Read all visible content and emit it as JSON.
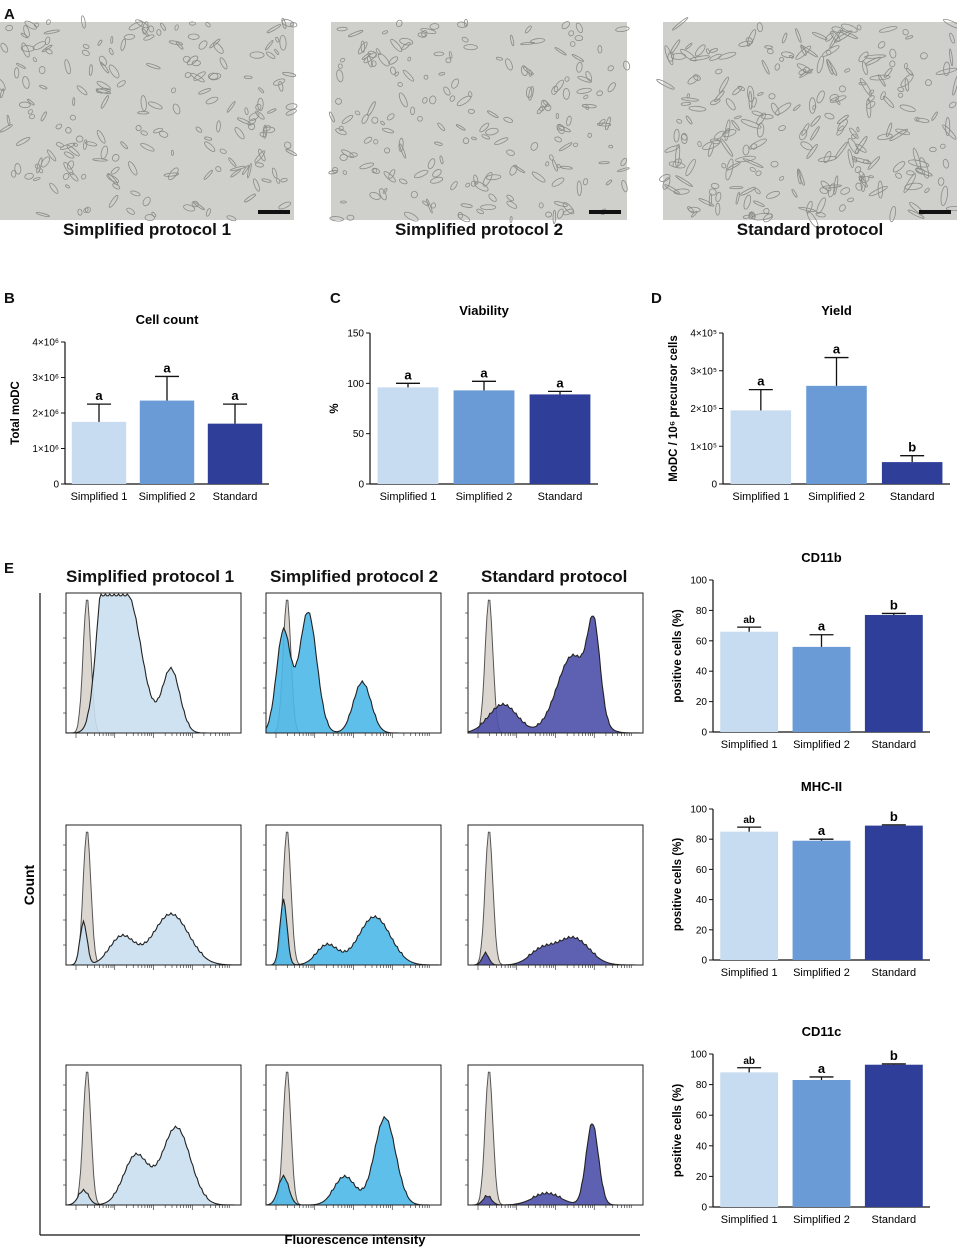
{
  "panel_labels": {
    "a": "A",
    "b": "B",
    "c": "C",
    "d": "D",
    "e": "E"
  },
  "micrographs": [
    {
      "caption": "Simplified protocol 1"
    },
    {
      "caption": "Simplified protocol 2"
    },
    {
      "caption": "Standard protocol"
    }
  ],
  "colors": {
    "light": "#c7dcf0",
    "mid": "#6a9bd6",
    "dark": "#2e3e99",
    "flow_light": "#c9dff0",
    "flow_mid": "#4bb8e8",
    "flow_dark": "#4d4fa8",
    "isotype": "#dcd6d0"
  },
  "flow": {
    "column_titles": [
      "Simplified protocol 1",
      "Simplified protocol 2",
      "Standard protocol"
    ],
    "y_label": "Count",
    "x_label": "Fluorescence intensity"
  },
  "chart_data": [
    {
      "id": "B",
      "type": "bar",
      "title": "Cell count",
      "ylabel": "Total moDC",
      "categories": [
        "Simplified 1",
        "Simplified 2",
        "Standard"
      ],
      "values": [
        1.75,
        2.35,
        1.7
      ],
      "errors": [
        0.5,
        0.68,
        0.55
      ],
      "letters": [
        "a",
        "a",
        "a"
      ],
      "ylim": [
        0,
        4
      ],
      "yticks": [
        {
          "v": 0,
          "label": "0"
        },
        {
          "v": 1,
          "label": "1×10⁶"
        },
        {
          "v": 2,
          "label": "2×10⁶"
        },
        {
          "v": 3,
          "label": "3×10⁶"
        },
        {
          "v": 4,
          "label": "4×10⁶"
        }
      ]
    },
    {
      "id": "C",
      "type": "bar",
      "title": "Viability",
      "ylabel": "%",
      "categories": [
        "Simplified 1",
        "Simplified 2",
        "Standard"
      ],
      "values": [
        96,
        93,
        89
      ],
      "errors": [
        4,
        9,
        3
      ],
      "letters": [
        "a",
        "a",
        "a"
      ],
      "ylim": [
        0,
        150
      ],
      "yticks": [
        {
          "v": 0,
          "label": "0"
        },
        {
          "v": 50,
          "label": "50"
        },
        {
          "v": 100,
          "label": "100"
        },
        {
          "v": 150,
          "label": "150"
        }
      ]
    },
    {
      "id": "D",
      "type": "bar",
      "title": "Yield",
      "ylabel": "MoDC / 10⁶ precursor cells",
      "categories": [
        "Simplified 1",
        "Simplified 2",
        "Standard"
      ],
      "values": [
        1.95,
        2.6,
        0.58
      ],
      "errors": [
        0.55,
        0.75,
        0.17
      ],
      "letters": [
        "a",
        "a",
        "b"
      ],
      "ylim": [
        0,
        4
      ],
      "yticks": [
        {
          "v": 0,
          "label": "0"
        },
        {
          "v": 1,
          "label": "1×10⁵"
        },
        {
          "v": 2,
          "label": "2×10⁵"
        },
        {
          "v": 3,
          "label": "3×10⁵"
        },
        {
          "v": 4,
          "label": "4×10⁵"
        }
      ]
    },
    {
      "id": "CD11b",
      "type": "bar",
      "title": "CD11b",
      "ylabel": "positive cells (%)",
      "categories": [
        "Simplified 1",
        "Simplified 2",
        "Standard"
      ],
      "values": [
        66,
        56,
        77
      ],
      "errors": [
        3,
        8,
        1
      ],
      "letters": [
        "ab",
        "a",
        "b"
      ],
      "ylim": [
        0,
        100
      ],
      "yticks": [
        {
          "v": 0,
          "label": "0"
        },
        {
          "v": 20,
          "label": "20"
        },
        {
          "v": 40,
          "label": "40"
        },
        {
          "v": 60,
          "label": "60"
        },
        {
          "v": 80,
          "label": "80"
        },
        {
          "v": 100,
          "label": "100"
        }
      ]
    },
    {
      "id": "MHC-II",
      "type": "bar",
      "title": "MHC-II",
      "ylabel": "positive cells (%)",
      "categories": [
        "Simplified 1",
        "Simplified 2",
        "Standard"
      ],
      "values": [
        85,
        79,
        89
      ],
      "errors": [
        3,
        1,
        0.5
      ],
      "letters": [
        "ab",
        "a",
        "b"
      ],
      "ylim": [
        0,
        100
      ],
      "yticks": [
        {
          "v": 0,
          "label": "0"
        },
        {
          "v": 20,
          "label": "20"
        },
        {
          "v": 40,
          "label": "40"
        },
        {
          "v": 60,
          "label": "60"
        },
        {
          "v": 80,
          "label": "80"
        },
        {
          "v": 100,
          "label": "100"
        }
      ]
    },
    {
      "id": "CD11c",
      "type": "bar",
      "title": "CD11c",
      "ylabel": "positive  cells (%)",
      "categories": [
        "Simplified 1",
        "Simplified 2",
        "Standard"
      ],
      "values": [
        88,
        83,
        93
      ],
      "errors": [
        3,
        2,
        0.5
      ],
      "letters": [
        "ab",
        "a",
        "b"
      ],
      "ylim": [
        0,
        100
      ],
      "yticks": [
        {
          "v": 0,
          "label": "0"
        },
        {
          "v": 20,
          "label": "20"
        },
        {
          "v": 40,
          "label": "40"
        },
        {
          "v": 60,
          "label": "60"
        },
        {
          "v": 80,
          "label": "80"
        },
        {
          "v": 100,
          "label": "100"
        }
      ]
    }
  ]
}
